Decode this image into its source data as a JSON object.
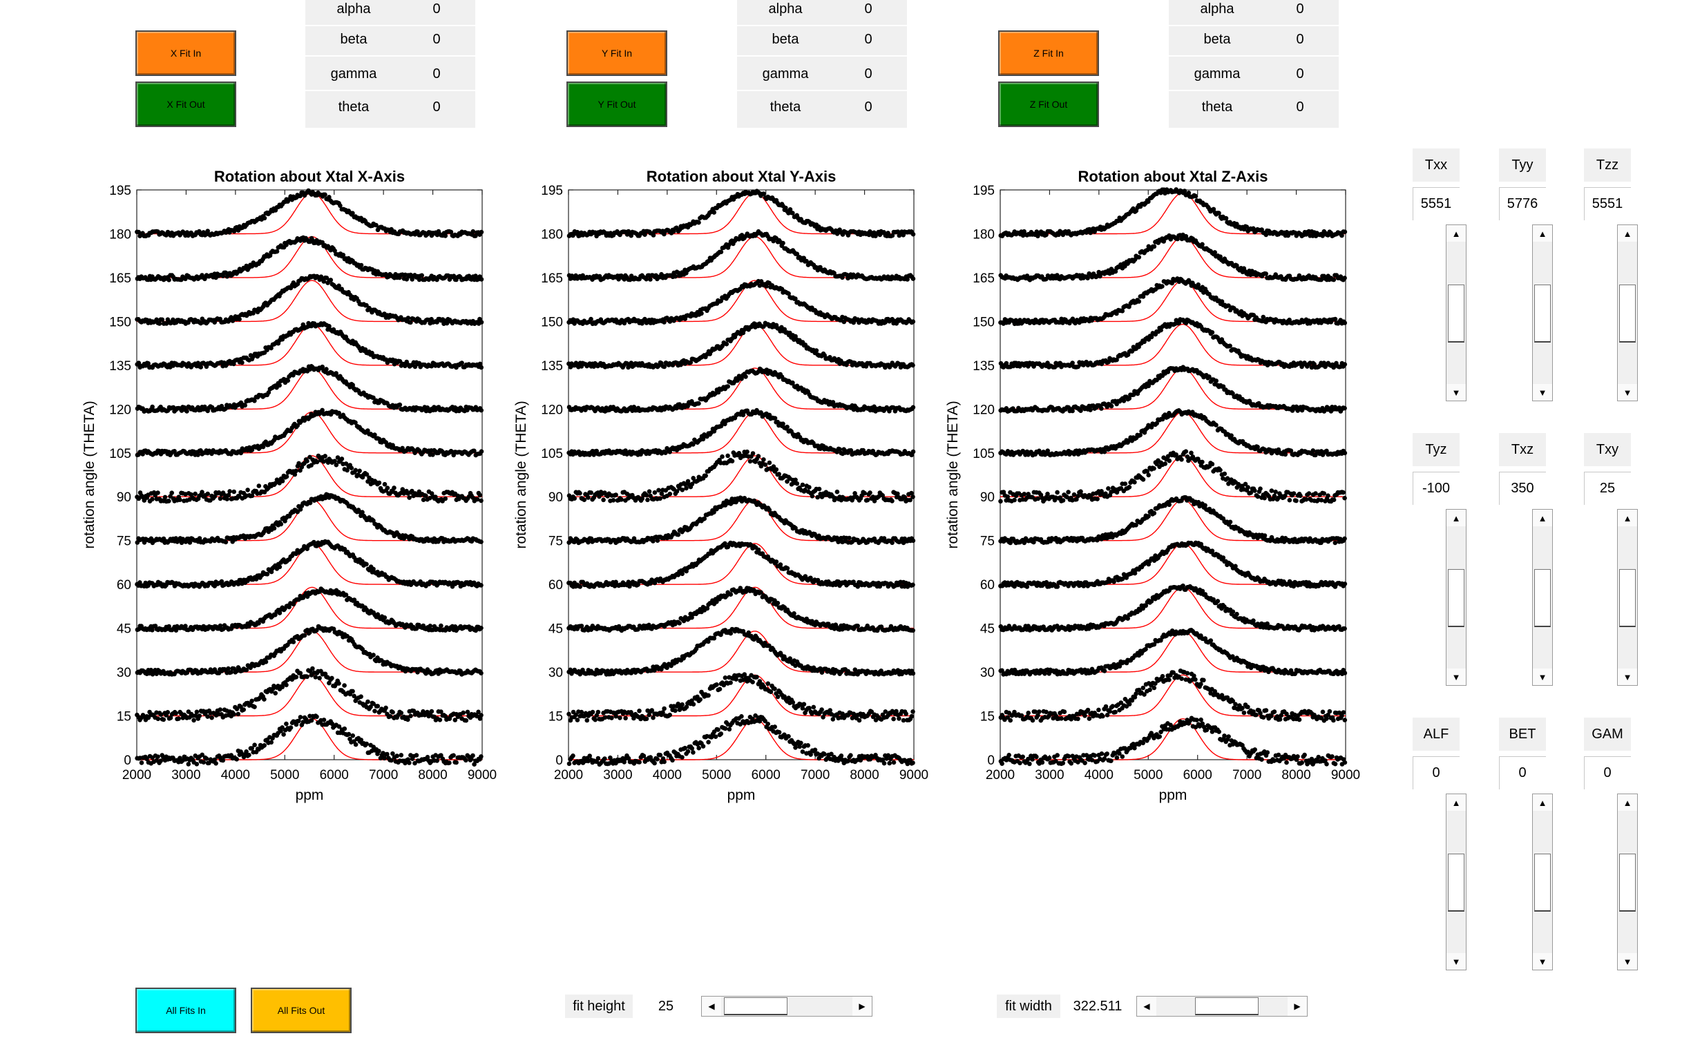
{
  "fit_buttons": [
    {
      "in_label": "X Fit In",
      "out_label": "X Fit Out"
    },
    {
      "in_label": "Y Fit In",
      "out_label": "Y Fit Out"
    },
    {
      "in_label": "Z Fit In",
      "out_label": "Z Fit Out"
    }
  ],
  "param_tables": [
    {
      "rows": [
        {
          "key": "alpha",
          "value": "0"
        },
        {
          "key": "beta",
          "value": "0"
        },
        {
          "key": "gamma",
          "value": "0"
        },
        {
          "key": "theta",
          "value": "0"
        }
      ]
    },
    {
      "rows": [
        {
          "key": "alpha",
          "value": "0"
        },
        {
          "key": "beta",
          "value": "0"
        },
        {
          "key": "gamma",
          "value": "0"
        },
        {
          "key": "theta",
          "value": "0"
        }
      ]
    },
    {
      "rows": [
        {
          "key": "alpha",
          "value": "0"
        },
        {
          "key": "beta",
          "value": "0"
        },
        {
          "key": "gamma",
          "value": "0"
        },
        {
          "key": "theta",
          "value": "0"
        }
      ]
    }
  ],
  "colors": {
    "fit_in": "#ff7f0e",
    "fit_out": "#007f00",
    "all_in": "#00ffff",
    "all_out": "#ffbf00",
    "fit_curve": "#ff0000",
    "data_points": "#000000"
  },
  "tensor": {
    "groups": [
      {
        "items": [
          {
            "label": "Txx",
            "value": "5551"
          },
          {
            "label": "Tyy",
            "value": "5776"
          },
          {
            "label": "Tzz",
            "value": "5551"
          }
        ]
      },
      {
        "items": [
          {
            "label": "Tyz",
            "value": "-100"
          },
          {
            "label": "Txz",
            "value": "350"
          },
          {
            "label": "Txy",
            "value": "25"
          }
        ]
      },
      {
        "items": [
          {
            "label": "ALF",
            "value": "0"
          },
          {
            "label": "BET",
            "value": "0"
          },
          {
            "label": "GAM",
            "value": "0"
          }
        ]
      }
    ]
  },
  "bottom": {
    "all_in_label": "All Fits In",
    "all_out_label": "All Fits Out",
    "fit_height_label": "fit height",
    "fit_height_value": "25",
    "fit_width_label": "fit width",
    "fit_width_value": "322.511"
  },
  "chart_data": [
    {
      "type": "scatter",
      "title": "Rotation about Xtal X-Axis",
      "xlabel": "ppm",
      "ylabel": "rotation angle (THETA)",
      "xlim": [
        2000,
        9000
      ],
      "ylim": [
        0,
        195
      ],
      "xticks": [
        2000,
        3000,
        4000,
        5000,
        6000,
        7000,
        8000,
        9000
      ],
      "yticks": [
        0,
        15,
        30,
        45,
        60,
        75,
        90,
        105,
        120,
        135,
        150,
        165,
        180,
        195
      ],
      "fit_center_ppm": 5551,
      "fit_width_ppm": 322.511,
      "fit_height": 25,
      "series": [
        {
          "offset": 0,
          "peak_ppm": 5550,
          "height": 14
        },
        {
          "offset": 15,
          "peak_ppm": 5500,
          "height": 15
        },
        {
          "offset": 30,
          "peak_ppm": 5750,
          "height": 15
        },
        {
          "offset": 45,
          "peak_ppm": 5800,
          "height": 13
        },
        {
          "offset": 60,
          "peak_ppm": 5750,
          "height": 14
        },
        {
          "offset": 75,
          "peak_ppm": 5850,
          "height": 15
        },
        {
          "offset": 90,
          "peak_ppm": 5800,
          "height": 13
        },
        {
          "offset": 105,
          "peak_ppm": 5850,
          "height": 14
        },
        {
          "offset": 120,
          "peak_ppm": 5600,
          "height": 14
        },
        {
          "offset": 135,
          "peak_ppm": 5600,
          "height": 14
        },
        {
          "offset": 150,
          "peak_ppm": 5600,
          "height": 15
        },
        {
          "offset": 165,
          "peak_ppm": 5400,
          "height": 13
        },
        {
          "offset": 180,
          "peak_ppm": 5500,
          "height": 14
        }
      ]
    },
    {
      "type": "scatter",
      "title": "Rotation about Xtal Y-Axis",
      "xlabel": "ppm",
      "ylabel": "rotation angle (THETA)",
      "xlim": [
        2000,
        9000
      ],
      "ylim": [
        0,
        195
      ],
      "xticks": [
        2000,
        3000,
        4000,
        5000,
        6000,
        7000,
        8000,
        9000
      ],
      "yticks": [
        0,
        15,
        30,
        45,
        60,
        75,
        90,
        105,
        120,
        135,
        150,
        165,
        180,
        195
      ],
      "fit_center_ppm": 5776,
      "fit_width_ppm": 322.511,
      "fit_height": 25,
      "series": [
        {
          "offset": 0,
          "peak_ppm": 5650,
          "height": 14
        },
        {
          "offset": 15,
          "peak_ppm": 5500,
          "height": 13
        },
        {
          "offset": 30,
          "peak_ppm": 5350,
          "height": 14
        },
        {
          "offset": 45,
          "peak_ppm": 5550,
          "height": 13
        },
        {
          "offset": 60,
          "peak_ppm": 5400,
          "height": 14
        },
        {
          "offset": 75,
          "peak_ppm": 5500,
          "height": 14
        },
        {
          "offset": 90,
          "peak_ppm": 5500,
          "height": 14
        },
        {
          "offset": 105,
          "peak_ppm": 5700,
          "height": 14
        },
        {
          "offset": 120,
          "peak_ppm": 5900,
          "height": 13
        },
        {
          "offset": 135,
          "peak_ppm": 5950,
          "height": 14
        },
        {
          "offset": 150,
          "peak_ppm": 5850,
          "height": 13
        },
        {
          "offset": 165,
          "peak_ppm": 5800,
          "height": 15
        },
        {
          "offset": 180,
          "peak_ppm": 5700,
          "height": 14
        }
      ]
    },
    {
      "type": "scatter",
      "title": "Rotation about Xtal Z-Axis",
      "xlabel": "ppm",
      "ylabel": "rotation angle (THETA)",
      "xlim": [
        2000,
        9000
      ],
      "ylim": [
        0,
        195
      ],
      "xticks": [
        2000,
        3000,
        4000,
        5000,
        6000,
        7000,
        8000,
        9000
      ],
      "yticks": [
        0,
        15,
        30,
        45,
        60,
        75,
        90,
        105,
        120,
        135,
        150,
        165,
        180,
        195
      ],
      "fit_center_ppm": 5700,
      "fit_width_ppm": 322.511,
      "fit_height": 25,
      "series": [
        {
          "offset": 0,
          "peak_ppm": 5800,
          "height": 13
        },
        {
          "offset": 15,
          "peak_ppm": 5600,
          "height": 14
        },
        {
          "offset": 30,
          "peak_ppm": 5700,
          "height": 14
        },
        {
          "offset": 45,
          "peak_ppm": 5700,
          "height": 14
        },
        {
          "offset": 60,
          "peak_ppm": 5800,
          "height": 14
        },
        {
          "offset": 75,
          "peak_ppm": 5700,
          "height": 14
        },
        {
          "offset": 90,
          "peak_ppm": 5700,
          "height": 14
        },
        {
          "offset": 105,
          "peak_ppm": 5700,
          "height": 14
        },
        {
          "offset": 120,
          "peak_ppm": 5700,
          "height": 14
        },
        {
          "offset": 135,
          "peak_ppm": 5700,
          "height": 15
        },
        {
          "offset": 150,
          "peak_ppm": 5600,
          "height": 14
        },
        {
          "offset": 165,
          "peak_ppm": 5600,
          "height": 14
        },
        {
          "offset": 180,
          "peak_ppm": 5500,
          "height": 15
        }
      ]
    }
  ]
}
